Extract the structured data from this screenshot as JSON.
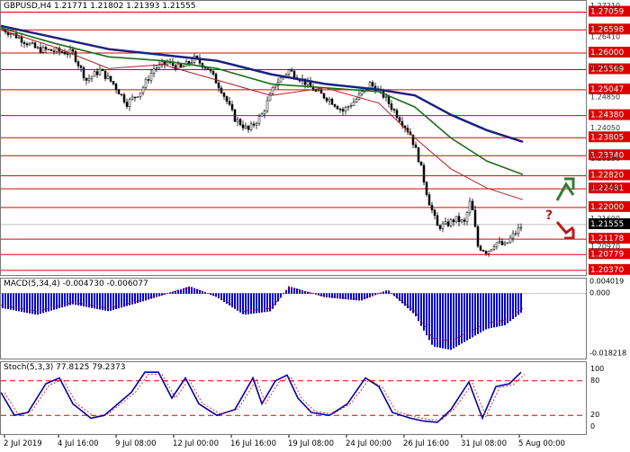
{
  "symbol_header": "GBPUSD,H4  1.21771 1.21802 1.21393 1.21555",
  "price_axis": {
    "ticks": [
      "1.27210",
      "1.26410",
      "1.25610",
      "1.24850",
      "1.24050",
      "1.23250",
      "1.22500",
      "1.21690",
      "1.20970"
    ],
    "red_levels": [
      "1.27059",
      "1.26598",
      "1.26000",
      "1.25569",
      "1.25047",
      "1.24380",
      "1.23805",
      "1.23340",
      "1.22820",
      "1.22481",
      "1.22000",
      "1.21178",
      "1.20779",
      "1.20370"
    ],
    "current": "1.21555"
  },
  "annotation": {
    "question": "?"
  },
  "macd": {
    "header": "MACD(5,34,4) -0.004730 -0.006077",
    "ticks": [
      "0.004019",
      "0.000",
      "-0.018218"
    ]
  },
  "stoch": {
    "header": "Stoch(5,3,3) 77.8125 79.2373",
    "ticks": [
      "100",
      "80",
      "20",
      "0"
    ]
  },
  "time_axis": [
    "2 Jul 2019",
    "4 Jul 16:00",
    "9 Jul 08:00",
    "12 Jul 00:00",
    "16 Jul 16:00",
    "19 Jul 08:00",
    "24 Jul 00:00",
    "26 Jul 16:00",
    "31 Jul 08:00",
    "5 Aug 00:00"
  ],
  "colors": {
    "level_red": "#dd0000",
    "ma_blue": "#1a237e",
    "ma_green": "#1b6e1b",
    "ma_red": "#b02020",
    "hist_blue": "#0000cc",
    "stoch_blue": "#0000aa",
    "arrow_green": "#2e7d32",
    "arrow_red": "#b71c1c"
  }
}
